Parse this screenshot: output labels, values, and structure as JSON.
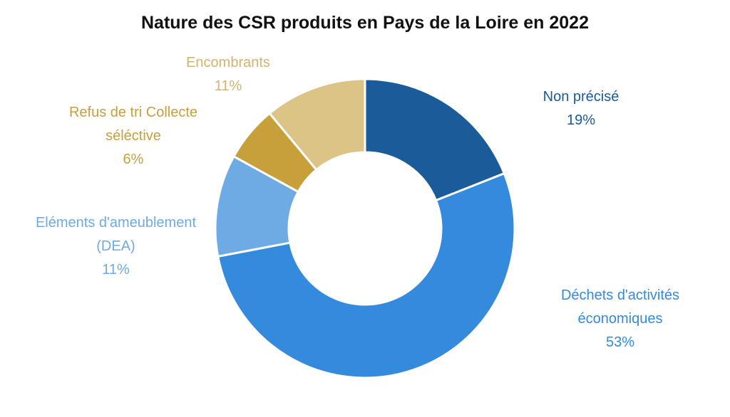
{
  "chart_data": {
    "type": "pie",
    "variant": "donut",
    "title": "Nature des CSR produits en Pays de la Loire en 2022",
    "slices": [
      {
        "lines": [
          "Non précisé"
        ],
        "percent_label": "19%",
        "value": 19,
        "color": "#1b5b99"
      },
      {
        "lines": [
          "Déchets d'activités",
          "économiques"
        ],
        "percent_label": "53%",
        "value": 53,
        "color": "#348adc"
      },
      {
        "lines": [
          "Eléments d'ameublement",
          "(DEA)"
        ],
        "percent_label": "11%",
        "value": 11,
        "color": "#6eaae4"
      },
      {
        "lines": [
          "Refus de tri Collecte",
          "séléctive"
        ],
        "percent_label": "6%",
        "value": 6,
        "color": "#c7a03b"
      },
      {
        "lines": [
          "Encombrants"
        ],
        "percent_label": "11%",
        "value": 11,
        "color": "#dcc487"
      }
    ]
  }
}
